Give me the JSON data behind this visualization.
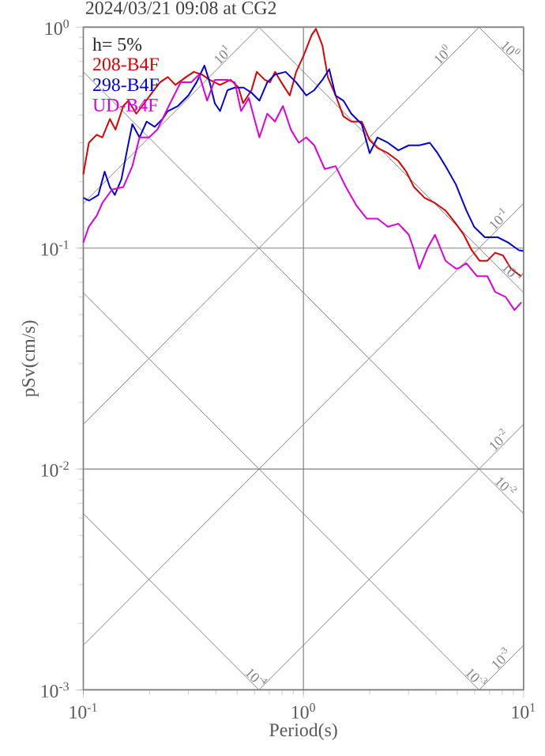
{
  "chart_data": {
    "type": "line",
    "title": "2024/03/21 09:08 at CG2",
    "xlabel": "Period(s)",
    "ylabel": "pSv(cm/s)",
    "log": "xy",
    "grid": true,
    "legend": "top left",
    "xlim": [
      0.1,
      10
    ],
    "ylim": [
      0.001,
      1
    ],
    "xticks": [
      {
        "value": 0.1,
        "label": "10$^{-1}$"
      },
      {
        "value": 1,
        "label": "10$^{0}$"
      },
      {
        "value": 10,
        "label": "10$^{1}$"
      }
    ],
    "yticks": [
      {
        "value": 0.001,
        "label": "10$^{-3}$"
      },
      {
        "value": 0.01,
        "label": "10$^{-2}$"
      },
      {
        "value": 0.1,
        "label": "10$^{-1}$"
      },
      {
        "value": 1,
        "label": "10$^{0}$"
      }
    ],
    "annotations": [
      "h= 5%",
      {
        "text": "10$^{1}$",
        "x": 0.45,
        "y": 0.716
      },
      {
        "text": "10$^{0}$",
        "x": 4.5,
        "y": 0.716
      },
      {
        "text": "10$^{0}$",
        "x": 8.3,
        "y": 0.757
      },
      {
        "text": "10$^{-1}$",
        "x": 8.1,
        "y": 0.129
      },
      {
        "text": "10$^{-1}$",
        "x": 8.5,
        "y": 0.0739
      },
      {
        "text": "10$^{-2}$",
        "x": 8.1,
        "y": 0.0129
      },
      {
        "text": "10$^{-2}$",
        "x": 7.9,
        "y": 0.00795
      },
      {
        "text": "10$^{-3}$",
        "x": 8.3,
        "y": 0.00132
      },
      {
        "text": "10$^{-3}$",
        "x": 5.8,
        "y": 0.001083
      },
      {
        "text": "10$^{-4}$",
        "x": 0.58,
        "y": 0.001083
      }
    ],
    "series": [
      {
        "type": "line",
        "color": "#808080",
        "x": [
          6.283,
          10
        ],
        "values": [
          1,
          0.6283
        ]
      },
      {
        "type": "line",
        "color": "#808080",
        "x": [
          0.6283,
          10
        ],
        "values": [
          1,
          0.06283
        ]
      },
      {
        "type": "line",
        "color": "#808080",
        "x": [
          0.1,
          10
        ],
        "values": [
          0.6283,
          0.006283
        ]
      },
      {
        "type": "line",
        "color": "#808080",
        "x": [
          0.1,
          6.283
        ],
        "values": [
          0.06283,
          0.001
        ]
      },
      {
        "type": "line",
        "color": "#808080",
        "x": [
          0.1,
          0.6283
        ],
        "values": [
          0.006283,
          0.001
        ]
      },
      {
        "type": "line",
        "color": "#808080",
        "x": [
          0.1,
          0.6283
        ],
        "values": [
          0.1592,
          1
        ]
      },
      {
        "type": "line",
        "color": "#808080",
        "x": [
          0.1,
          6.283
        ],
        "values": [
          0.01592,
          1
        ]
      },
      {
        "type": "line",
        "color": "#808080",
        "x": [
          0.1,
          10
        ],
        "values": [
          0.001592,
          0.1592
        ]
      },
      {
        "type": "line",
        "color": "#808080",
        "x": [
          0.6283,
          10
        ],
        "values": [
          0.001,
          0.01592
        ]
      },
      {
        "type": "line",
        "color": "#808080",
        "x": [
          6.283,
          10
        ],
        "values": [
          0.001,
          0.001592
        ]
      },
      {
        "name": "208-B4F",
        "color": "#dd0000",
        "x": [
          0.1,
          0.106,
          0.115,
          0.122,
          0.132,
          0.14,
          0.152,
          0.16,
          0.174,
          0.189,
          0.205,
          0.223,
          0.242,
          0.262,
          0.293,
          0.318,
          0.345,
          0.375,
          0.418,
          0.467,
          0.507,
          0.532,
          0.581,
          0.614,
          0.667,
          0.705,
          0.743,
          0.807,
          0.867,
          0.927,
          1.0,
          1.09,
          1.14,
          1.22,
          1.29,
          1.4,
          1.52,
          1.65,
          1.84,
          2.0,
          2.17,
          2.42,
          2.7,
          2.93,
          3.18,
          3.55,
          3.96,
          4.42,
          4.93,
          5.35,
          5.81,
          6.31,
          6.85,
          7.43,
          8.07,
          8.77,
          9.78
        ],
        "values": [
          0.216,
          0.3,
          0.326,
          0.317,
          0.384,
          0.344,
          0.44,
          0.465,
          0.406,
          0.452,
          0.505,
          0.563,
          0.595,
          0.548,
          0.595,
          0.628,
          0.611,
          0.578,
          0.548,
          0.578,
          0.533,
          0.453,
          0.519,
          0.628,
          0.578,
          0.563,
          0.628,
          0.548,
          0.491,
          0.628,
          0.74,
          0.921,
          0.984,
          0.826,
          0.595,
          0.491,
          0.395,
          0.374,
          0.374,
          0.308,
          0.284,
          0.269,
          0.248,
          0.222,
          0.189,
          0.169,
          0.16,
          0.148,
          0.129,
          0.115,
          0.098,
          0.0877,
          0.0877,
          0.0953,
          0.0927,
          0.0807,
          0.0744
        ]
      },
      {
        "name": "298-B4F",
        "color": "#0000dd",
        "x": [
          0.1,
          0.106,
          0.117,
          0.125,
          0.132,
          0.139,
          0.149,
          0.158,
          0.167,
          0.18,
          0.194,
          0.211,
          0.229,
          0.242,
          0.269,
          0.3,
          0.327,
          0.355,
          0.375,
          0.396,
          0.418,
          0.452,
          0.488,
          0.535,
          0.581,
          0.631,
          0.685,
          0.743,
          0.83,
          0.927,
          1.03,
          1.12,
          1.22,
          1.31,
          1.4,
          1.52,
          1.65,
          1.84,
          2.0,
          2.17,
          2.42,
          2.7,
          3.01,
          3.36,
          3.75,
          4.07,
          4.42,
          4.93,
          5.5,
          5.96,
          6.67,
          7.63,
          8.51,
          9.5,
          9.96
        ],
        "values": [
          0.169,
          0.164,
          0.174,
          0.222,
          0.189,
          0.174,
          0.205,
          0.277,
          0.364,
          0.317,
          0.374,
          0.354,
          0.384,
          0.417,
          0.44,
          0.491,
          0.563,
          0.671,
          0.563,
          0.452,
          0.417,
          0.519,
          0.533,
          0.533,
          0.505,
          0.465,
          0.563,
          0.611,
          0.628,
          0.563,
          0.491,
          0.519,
          0.578,
          0.646,
          0.491,
          0.465,
          0.406,
          0.364,
          0.269,
          0.317,
          0.3,
          0.277,
          0.292,
          0.292,
          0.3,
          0.269,
          0.235,
          0.194,
          0.148,
          0.125,
          0.112,
          0.112,
          0.106,
          0.098,
          0.097
        ]
      },
      {
        "name": "UD-B4F",
        "color": "#dd00dd",
        "x": [
          0.1,
          0.106,
          0.115,
          0.122,
          0.135,
          0.152,
          0.167,
          0.18,
          0.199,
          0.217,
          0.248,
          0.277,
          0.309,
          0.336,
          0.365,
          0.396,
          0.452,
          0.488,
          0.521,
          0.565,
          0.631,
          0.685,
          0.743,
          0.807,
          0.877,
          0.952,
          1.03,
          1.12,
          1.25,
          1.4,
          1.56,
          1.74,
          1.94,
          2.17,
          2.42,
          2.7,
          3.01,
          3.18,
          3.36,
          3.65,
          3.96,
          4.42,
          4.93,
          5.07,
          5.5,
          6.15,
          6.85,
          7.43,
          8.3,
          9.1,
          9.78
        ],
        "values": [
          0.106,
          0.125,
          0.14,
          0.16,
          0.184,
          0.189,
          0.235,
          0.317,
          0.317,
          0.344,
          0.453,
          0.563,
          0.563,
          0.611,
          0.465,
          0.578,
          0.578,
          0.563,
          0.417,
          0.478,
          0.317,
          0.406,
          0.374,
          0.44,
          0.344,
          0.3,
          0.317,
          0.292,
          0.228,
          0.235,
          0.189,
          0.156,
          0.136,
          0.136,
          0.125,
          0.129,
          0.115,
          0.098,
          0.0807,
          0.0991,
          0.115,
          0.0877,
          0.0807,
          0.081,
          0.0855,
          0.0746,
          0.0746,
          0.0634,
          0.06,
          0.0524,
          0.0568
        ]
      }
    ]
  }
}
